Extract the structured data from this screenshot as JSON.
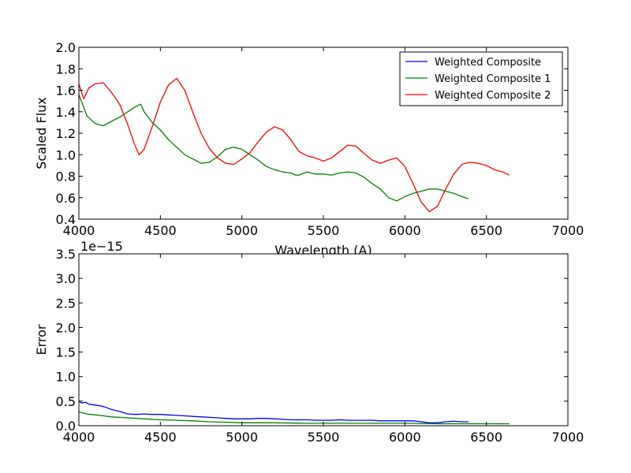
{
  "chart_data": [
    {
      "type": "line",
      "xlabel": "Wavelength (A)",
      "ylabel": "Scaled Flux",
      "xlim": [
        4000,
        7000
      ],
      "ylim": [
        0.4,
        2.0
      ],
      "xticks": [
        "4000",
        "4500",
        "5000",
        "5500",
        "6000",
        "6500",
        "7000"
      ],
      "yticks": [
        "0.4",
        "0.6",
        "0.8",
        "1.0",
        "1.2",
        "1.4",
        "1.6",
        "1.8",
        "2.0"
      ],
      "legend_position": "top-right",
      "grid": false,
      "series": [
        {
          "name": "Weighted Composite",
          "color": "#0000ff",
          "x": [],
          "y": []
        },
        {
          "name": "Weighted Composite 1",
          "color": "#008000",
          "x": [
            4000,
            4020,
            4050,
            4100,
            4150,
            4200,
            4250,
            4300,
            4350,
            4380,
            4400,
            4450,
            4500,
            4550,
            4600,
            4650,
            4700,
            4750,
            4800,
            4850,
            4900,
            4950,
            5000,
            5050,
            5100,
            5150,
            5200,
            5250,
            5300,
            5330,
            5350,
            5400,
            5450,
            5500,
            5550,
            5600,
            5650,
            5700,
            5750,
            5800,
            5850,
            5900,
            5950,
            6000,
            6050,
            6100,
            6150,
            6200,
            6250,
            6300,
            6350,
            6390
          ],
          "y": [
            1.56,
            1.48,
            1.36,
            1.29,
            1.27,
            1.31,
            1.35,
            1.4,
            1.45,
            1.47,
            1.4,
            1.3,
            1.23,
            1.14,
            1.07,
            1.0,
            0.96,
            0.92,
            0.93,
            0.98,
            1.05,
            1.07,
            1.05,
            1.0,
            0.95,
            0.89,
            0.86,
            0.84,
            0.83,
            0.81,
            0.81,
            0.84,
            0.82,
            0.82,
            0.81,
            0.83,
            0.84,
            0.83,
            0.79,
            0.73,
            0.68,
            0.6,
            0.57,
            0.61,
            0.64,
            0.66,
            0.68,
            0.68,
            0.66,
            0.64,
            0.61,
            0.59
          ]
        },
        {
          "name": "Weighted Composite 2",
          "color": "#ff0000",
          "x": [
            4000,
            4030,
            4060,
            4100,
            4150,
            4200,
            4250,
            4300,
            4340,
            4370,
            4400,
            4450,
            4500,
            4550,
            4600,
            4650,
            4700,
            4750,
            4800,
            4850,
            4900,
            4950,
            5000,
            5050,
            5100,
            5150,
            5200,
            5250,
            5300,
            5350,
            5400,
            5450,
            5500,
            5550,
            5600,
            5650,
            5700,
            5750,
            5800,
            5850,
            5900,
            5950,
            6000,
            6050,
            6100,
            6150,
            6200,
            6250,
            6300,
            6350,
            6400,
            6450,
            6500,
            6550,
            6600,
            6640
          ],
          "y": [
            1.66,
            1.52,
            1.62,
            1.66,
            1.67,
            1.58,
            1.47,
            1.28,
            1.1,
            1.0,
            1.05,
            1.26,
            1.49,
            1.65,
            1.71,
            1.6,
            1.39,
            1.2,
            1.06,
            0.97,
            0.92,
            0.91,
            0.96,
            1.02,
            1.12,
            1.21,
            1.26,
            1.23,
            1.14,
            1.03,
            0.99,
            0.97,
            0.94,
            0.97,
            1.03,
            1.09,
            1.08,
            1.01,
            0.95,
            0.92,
            0.95,
            0.97,
            0.89,
            0.73,
            0.56,
            0.47,
            0.52,
            0.68,
            0.82,
            0.91,
            0.93,
            0.92,
            0.9,
            0.86,
            0.84,
            0.81
          ]
        }
      ]
    },
    {
      "type": "line",
      "xlabel": "",
      "ylabel": "Error",
      "offset_label": "1e−15",
      "xlim": [
        4000,
        7000
      ],
      "ylim": [
        0.0,
        3.5
      ],
      "xticks": [
        "4000",
        "4500",
        "5000",
        "5500",
        "6000",
        "6500",
        "7000"
      ],
      "yticks": [
        "0.0",
        "0.5",
        "1.0",
        "1.5",
        "2.0",
        "2.5",
        "3.0",
        "3.5"
      ],
      "grid": false,
      "series": [
        {
          "color": "#0000ff",
          "x": [
            4000,
            4020,
            4040,
            4060,
            4080,
            4100,
            4140,
            4150,
            4160,
            4200,
            4250,
            4300,
            4350,
            4400,
            4450,
            4500,
            4550,
            4600,
            4650,
            4700,
            4750,
            4800,
            4850,
            4900,
            4950,
            5000,
            5050,
            5100,
            5150,
            5200,
            5250,
            5300,
            5350,
            5400,
            5450,
            5500,
            5550,
            5600,
            5650,
            5700,
            5750,
            5800,
            5850,
            5900,
            5950,
            6000,
            6050,
            6100,
            6150,
            6200,
            6250,
            6300,
            6350,
            6390
          ],
          "y": [
            0.5,
            0.46,
            0.48,
            0.44,
            0.43,
            0.42,
            0.4,
            0.39,
            0.38,
            0.33,
            0.29,
            0.24,
            0.23,
            0.24,
            0.23,
            0.23,
            0.22,
            0.21,
            0.2,
            0.19,
            0.18,
            0.17,
            0.16,
            0.15,
            0.14,
            0.14,
            0.14,
            0.15,
            0.15,
            0.14,
            0.13,
            0.12,
            0.12,
            0.12,
            0.11,
            0.11,
            0.11,
            0.12,
            0.11,
            0.11,
            0.11,
            0.11,
            0.1,
            0.1,
            0.1,
            0.1,
            0.1,
            0.08,
            0.06,
            0.06,
            0.08,
            0.09,
            0.08,
            0.08
          ]
        },
        {
          "color": "#008000",
          "x": [
            4000,
            4050,
            4100,
            4150,
            4200,
            4300,
            4400,
            4500,
            4600,
            4700,
            4800,
            4900,
            5000,
            5200,
            5400,
            5600,
            5800,
            6000,
            6200,
            6400,
            6640
          ],
          "y": [
            0.28,
            0.24,
            0.22,
            0.2,
            0.18,
            0.16,
            0.14,
            0.12,
            0.11,
            0.1,
            0.08,
            0.07,
            0.06,
            0.06,
            0.05,
            0.05,
            0.05,
            0.05,
            0.04,
            0.04,
            0.04
          ]
        }
      ]
    }
  ]
}
